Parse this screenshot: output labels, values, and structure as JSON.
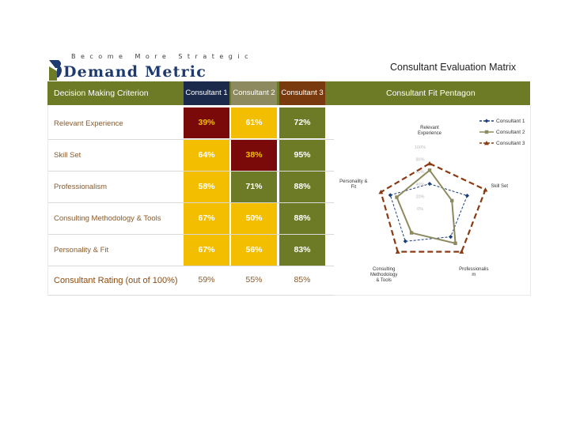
{
  "header": {
    "tagline": "Become More Strategic",
    "brand": "Demand Metric",
    "title": "Consultant Evaluation Matrix"
  },
  "table": {
    "criterion_header": "Decision Making Criterion",
    "consultant_headers": [
      "Consultant 1",
      "Consultant 2",
      "Consultant 3"
    ],
    "pentagon_header": "Consultant Fit Pentagon",
    "rows": [
      {
        "label": "Relevant Experience",
        "values": [
          "39%",
          "61%",
          "72%"
        ]
      },
      {
        "label": "Skill Set",
        "values": [
          "64%",
          "38%",
          "95%"
        ]
      },
      {
        "label": "Professionalism",
        "values": [
          "58%",
          "71%",
          "88%"
        ]
      },
      {
        "label": "Consulting Methodology & Tools",
        "values": [
          "67%",
          "50%",
          "88%"
        ]
      },
      {
        "label": "Personality & Fit",
        "values": [
          "67%",
          "56%",
          "83%"
        ]
      }
    ],
    "rating_label": "Consultant Rating (out of 100%)",
    "ratings": [
      "59%",
      "55%",
      "85%"
    ],
    "colors": {
      "red": "#7a0a0a",
      "yellow": "#f3bd00",
      "green": "#6e7b26"
    }
  },
  "chart_data": {
    "type": "radar",
    "categories": [
      "Relevant Experience",
      "Skill Set",
      "Professionalism",
      "Consulting Methodology & Tools",
      "Personality & Fit"
    ],
    "ylim": [
      0,
      100
    ],
    "ticks": [
      "0%",
      "20%",
      "40%",
      "60%",
      "80%",
      "100%"
    ],
    "series": [
      {
        "name": "Consultant 1",
        "values": [
          39,
          64,
          58,
          67,
          67
        ],
        "color": "#1b3f7a",
        "dash": "dashed",
        "marker": "diamond"
      },
      {
        "name": "Consultant 2",
        "values": [
          61,
          38,
          71,
          50,
          56
        ],
        "color": "#8c8a5e",
        "dash": "solid",
        "marker": "square"
      },
      {
        "name": "Consultant 3",
        "values": [
          72,
          95,
          88,
          88,
          83
        ],
        "color": "#8a3a10",
        "dash": "dashed",
        "marker": "triangle"
      }
    ],
    "legend": "top-right"
  }
}
